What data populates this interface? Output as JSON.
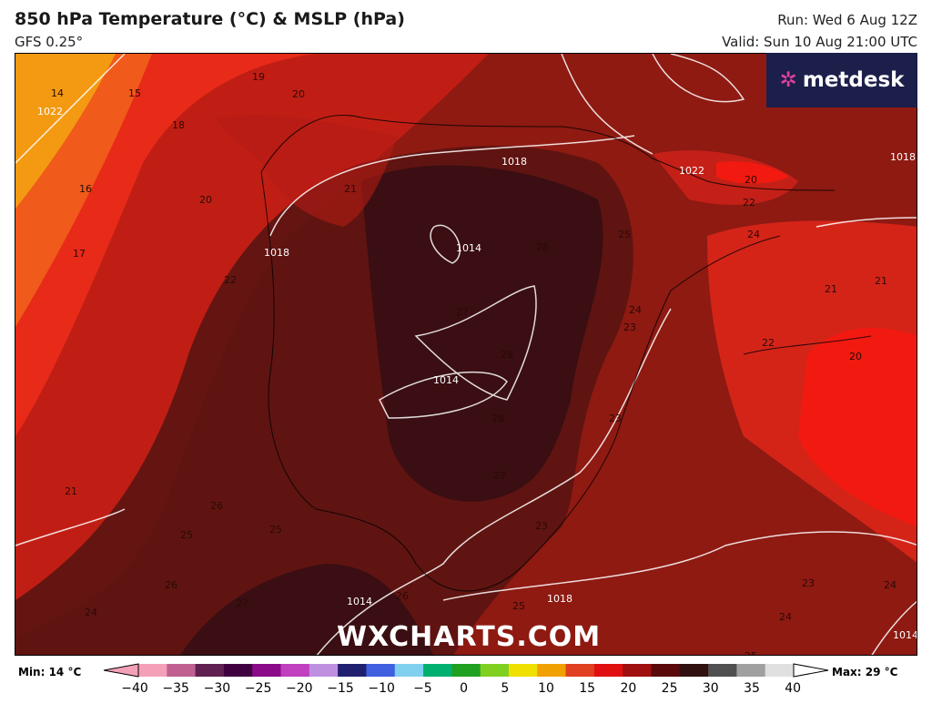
{
  "header": {
    "title": "850 hPa Temperature (°C) & MSLP (hPa)",
    "model": "GFS 0.25°",
    "run": "Run: Wed 6 Aug 12Z",
    "valid": "Valid: Sun 10 Aug 21:00 UTC"
  },
  "logo": {
    "text": "metdesk",
    "icon": "metdesk-pinwheel-icon"
  },
  "watermark": "WXCHARTS.COM",
  "legend": {
    "min": "Min: 14 °C",
    "max": "Max: 29 °C",
    "ticks": [
      "−40",
      "−35",
      "−30",
      "−25",
      "−20",
      "−15",
      "−10",
      "−5",
      "0",
      "5",
      "10",
      "15",
      "20",
      "25",
      "30",
      "35",
      "40"
    ],
    "colors": [
      "#f4a0b8",
      "#c06090",
      "#602050",
      "#400040",
      "#8a0a8a",
      "#c040c0",
      "#c090e0",
      "#202070",
      "#4060e0",
      "#80d0f0",
      "#00b070",
      "#20a020",
      "#80d020",
      "#f0e000",
      "#f0a000",
      "#e04020",
      "#e01010",
      "#a01010",
      "#5a0a0a",
      "#301010",
      "#505050",
      "#a0a0a0",
      "#e0e0e0"
    ]
  },
  "map": {
    "temperature_labels": [
      "14",
      "15",
      "19",
      "20",
      "18",
      "16",
      "20",
      "21",
      "17",
      "22",
      "21",
      "25",
      "26",
      "25",
      "26",
      "24",
      "27",
      "26",
      "25",
      "28",
      "25",
      "27",
      "28",
      "28",
      "27",
      "23",
      "24",
      "23",
      "23",
      "24",
      "22",
      "20",
      "21",
      "21",
      "22",
      "20",
      "23",
      "24",
      "24",
      "25"
    ],
    "isobar_labels": [
      "1022",
      "1018",
      "1018",
      "1014",
      "1014",
      "1014",
      "1018",
      "1014",
      "1018",
      "1022"
    ]
  }
}
